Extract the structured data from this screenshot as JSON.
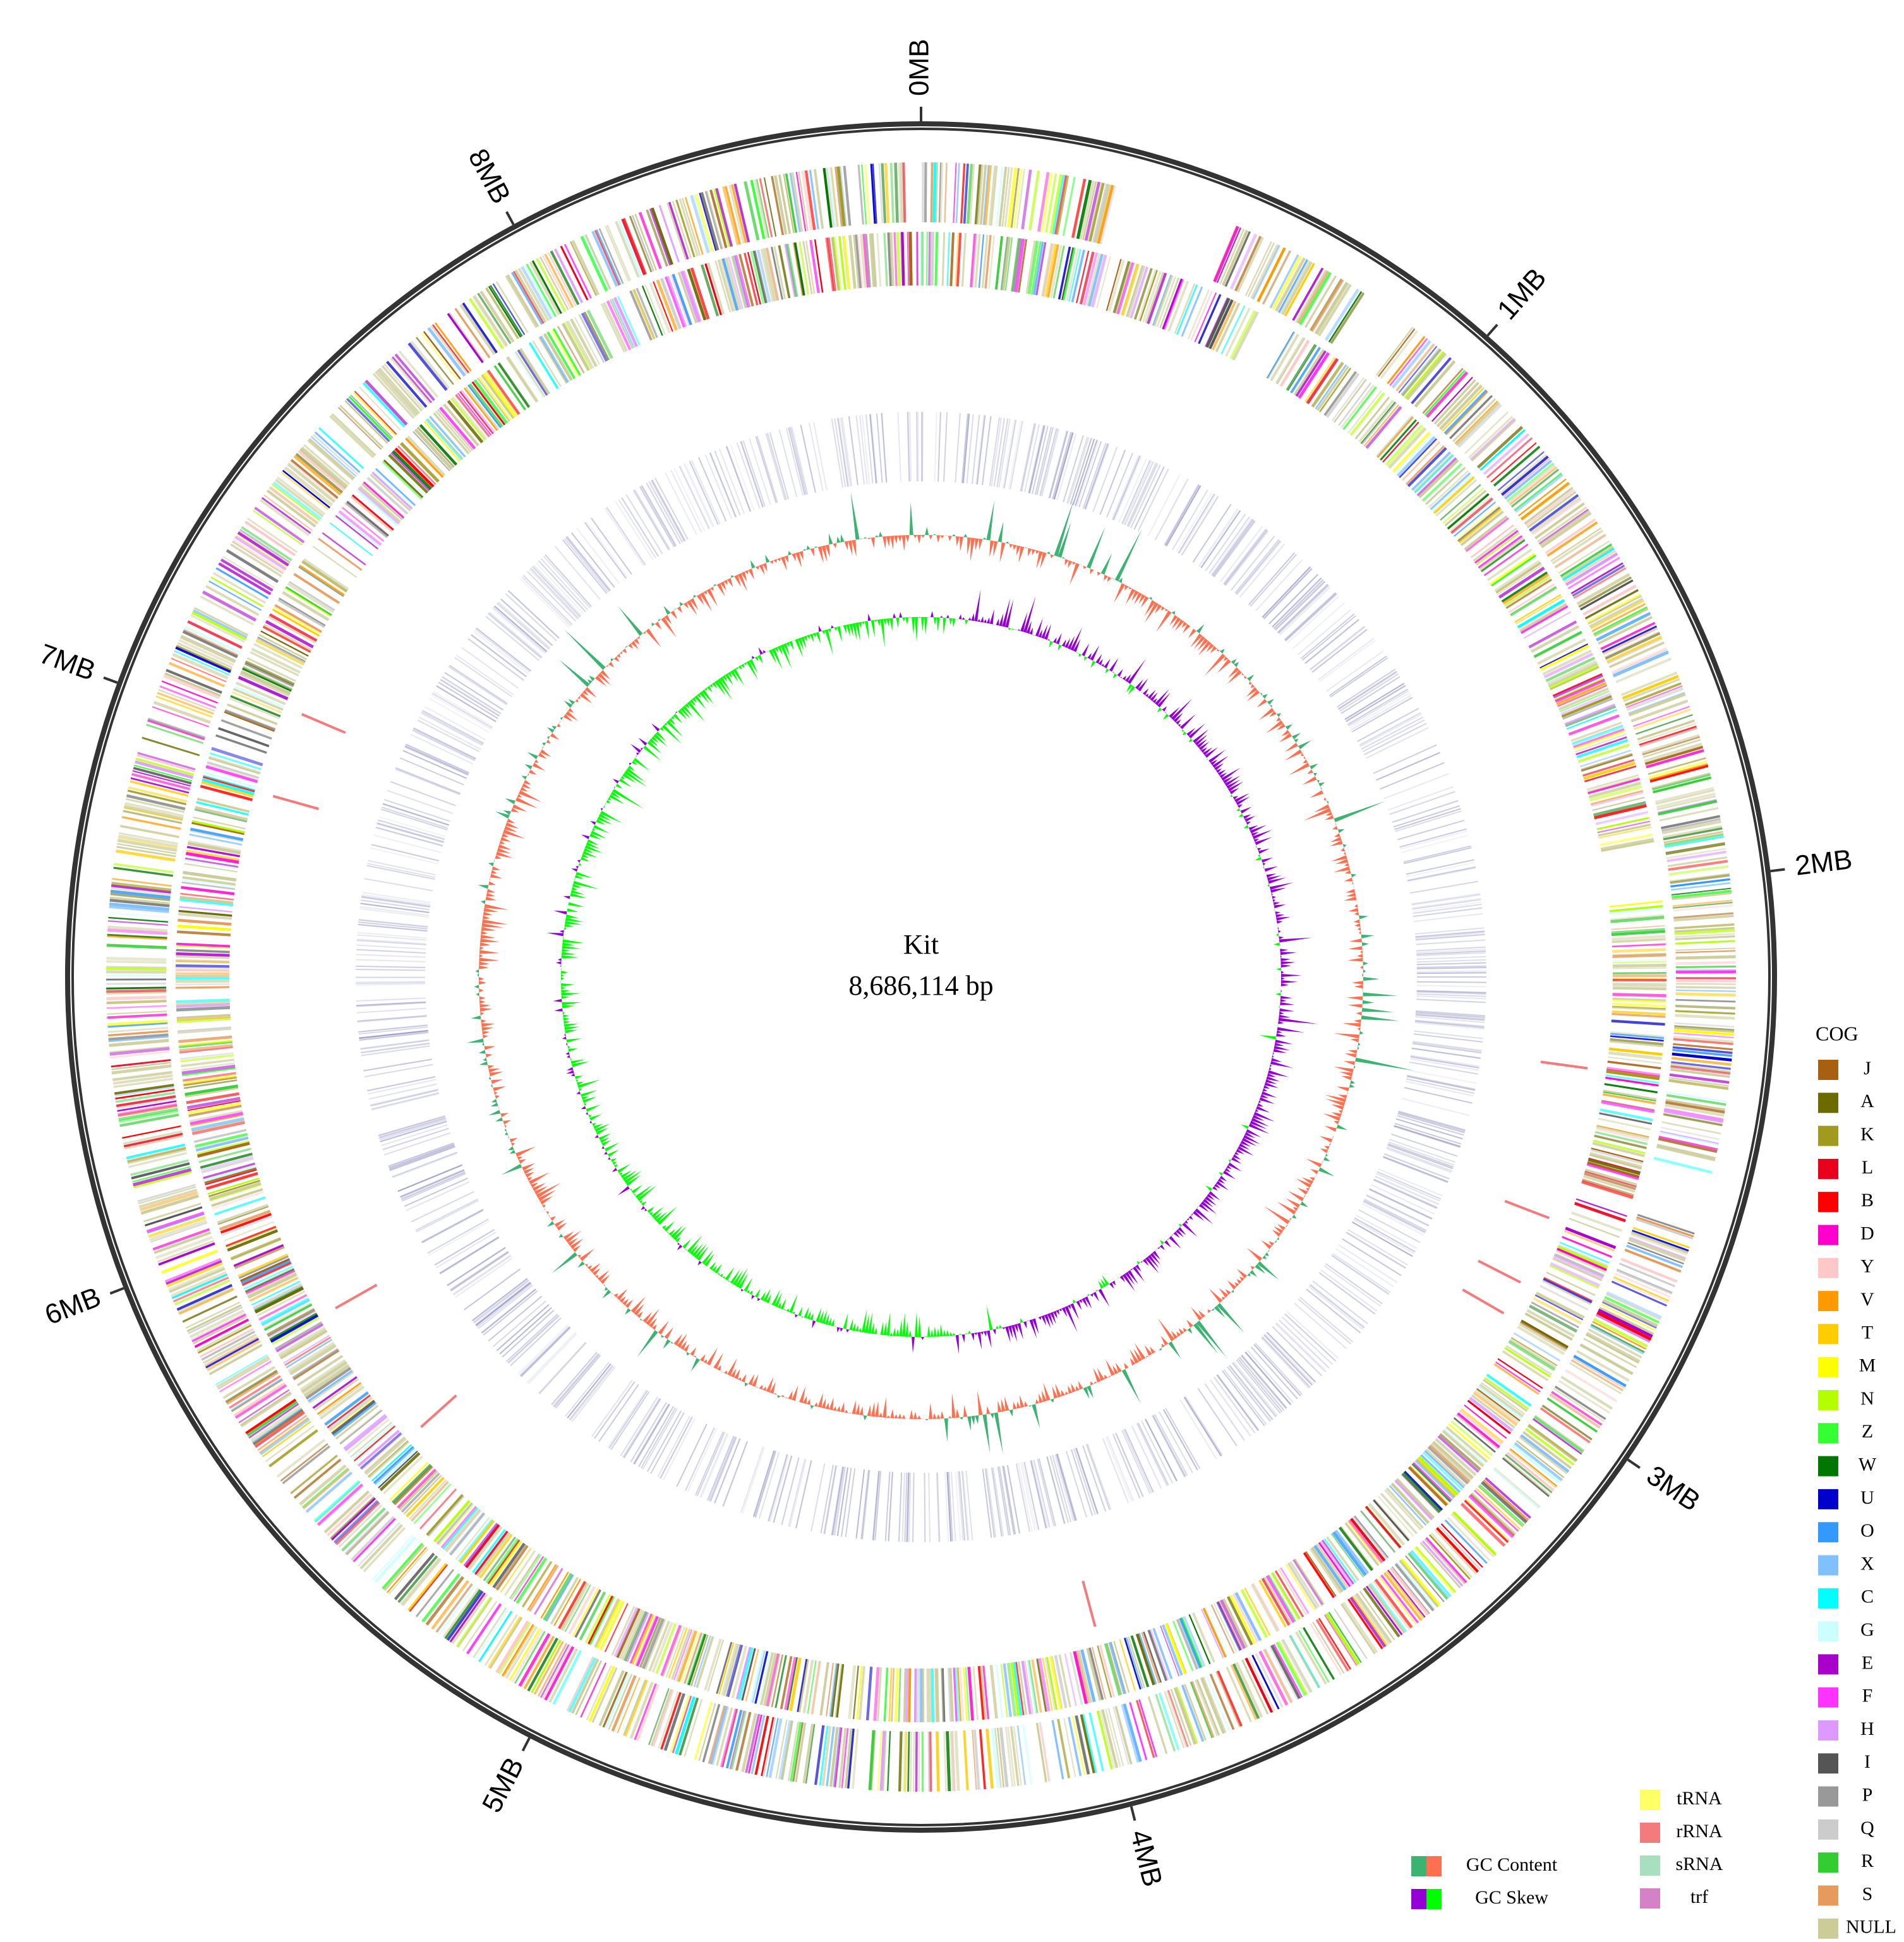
{
  "chart_data": {
    "type": "circular-genome",
    "title": "Kit",
    "subtitle": "8,686,114 bp",
    "xlim": [
      0,
      8686114
    ],
    "xticks": [
      {
        "value": 0,
        "label": "0MB"
      },
      {
        "value": 1000000,
        "label": "1MB"
      },
      {
        "value": 2000000,
        "label": "2MB"
      },
      {
        "value": 3000000,
        "label": "3MB"
      },
      {
        "value": 4000000,
        "label": "4MB"
      },
      {
        "value": 5000000,
        "label": "5MB"
      },
      {
        "value": 6000000,
        "label": "6MB"
      },
      {
        "value": 7000000,
        "label": "7MB"
      },
      {
        "value": 8000000,
        "label": "8MB"
      }
    ],
    "cog_legend_title": "COG",
    "cog": [
      {
        "name": "J",
        "color": "#a6600f"
      },
      {
        "name": "A",
        "color": "#6b6b00"
      },
      {
        "name": "K",
        "color": "#a09a1e"
      },
      {
        "name": "L",
        "color": "#e8001c"
      },
      {
        "name": "B",
        "color": "#ff0000"
      },
      {
        "name": "D",
        "color": "#ff00cc"
      },
      {
        "name": "Y",
        "color": "#ffc8c8"
      },
      {
        "name": "V",
        "color": "#ff9900"
      },
      {
        "name": "T",
        "color": "#ffcc00"
      },
      {
        "name": "M",
        "color": "#ffff00"
      },
      {
        "name": "N",
        "color": "#b3ff00"
      },
      {
        "name": "Z",
        "color": "#33ff33"
      },
      {
        "name": "W",
        "color": "#007700"
      },
      {
        "name": "U",
        "color": "#0000cc"
      },
      {
        "name": "O",
        "color": "#3399ff"
      },
      {
        "name": "X",
        "color": "#80c0ff"
      },
      {
        "name": "C",
        "color": "#00ffff"
      },
      {
        "name": "G",
        "color": "#ccffff"
      },
      {
        "name": "E",
        "color": "#aa00cc"
      },
      {
        "name": "F",
        "color": "#ff33ff"
      },
      {
        "name": "H",
        "color": "#dd99ff"
      },
      {
        "name": "I",
        "color": "#555555"
      },
      {
        "name": "P",
        "color": "#999999"
      },
      {
        "name": "Q",
        "color": "#cccccc"
      },
      {
        "name": "R",
        "color": "#33cc33"
      },
      {
        "name": "S",
        "color": "#e69a5c"
      },
      {
        "name": "NULL",
        "color": "#cccc99"
      }
    ],
    "track_legend": [
      {
        "name": "GC Content",
        "colors": [
          "#3cb371",
          "#ff7050"
        ]
      },
      {
        "name": "GC Skew",
        "colors": [
          "#9400d3",
          "#00ff00"
        ]
      }
    ],
    "rna_legend": [
      {
        "name": "tRNA",
        "color": "#ffff66"
      },
      {
        "name": "rRNA",
        "color": "#f47b7b"
      },
      {
        "name": "sRNA",
        "color": "#a8e0bf"
      },
      {
        "name": "trf",
        "color": "#d581c8"
      }
    ]
  }
}
